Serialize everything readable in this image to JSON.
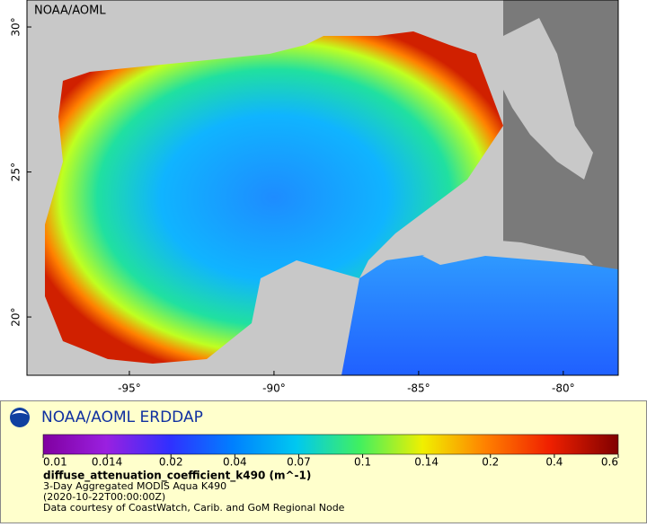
{
  "map": {
    "label": "NOAA/AOML",
    "xlim": [
      -98.54,
      -78.1
    ],
    "ylim": [
      17.99,
      30.93
    ],
    "xticks": [
      {
        "value": -95,
        "label": "-95°"
      },
      {
        "value": -90,
        "label": "-90°"
      },
      {
        "value": -85,
        "label": "-85°"
      },
      {
        "value": -80,
        "label": "-80°"
      }
    ],
    "yticks": [
      {
        "value": 20,
        "label": "20°"
      },
      {
        "value": 25,
        "label": "25°"
      },
      {
        "value": 30,
        "label": "30°"
      }
    ]
  },
  "legend": {
    "title": "NOAA/AOML ERDDAP",
    "ticks": [
      0.01,
      0.014,
      0.02,
      0.04,
      0.07,
      0.1,
      0.14,
      0.2,
      0.4,
      0.6
    ],
    "variable": "diffuse_attenuation_coefficient_k490 (m^-1)",
    "lines": [
      "3-Day Aggregated MODIS Aqua K490",
      "(2020-10-22T00:00:00Z)",
      "Data courtesy of CoastWatch, Carib. and GoM Regional Node"
    ]
  }
}
